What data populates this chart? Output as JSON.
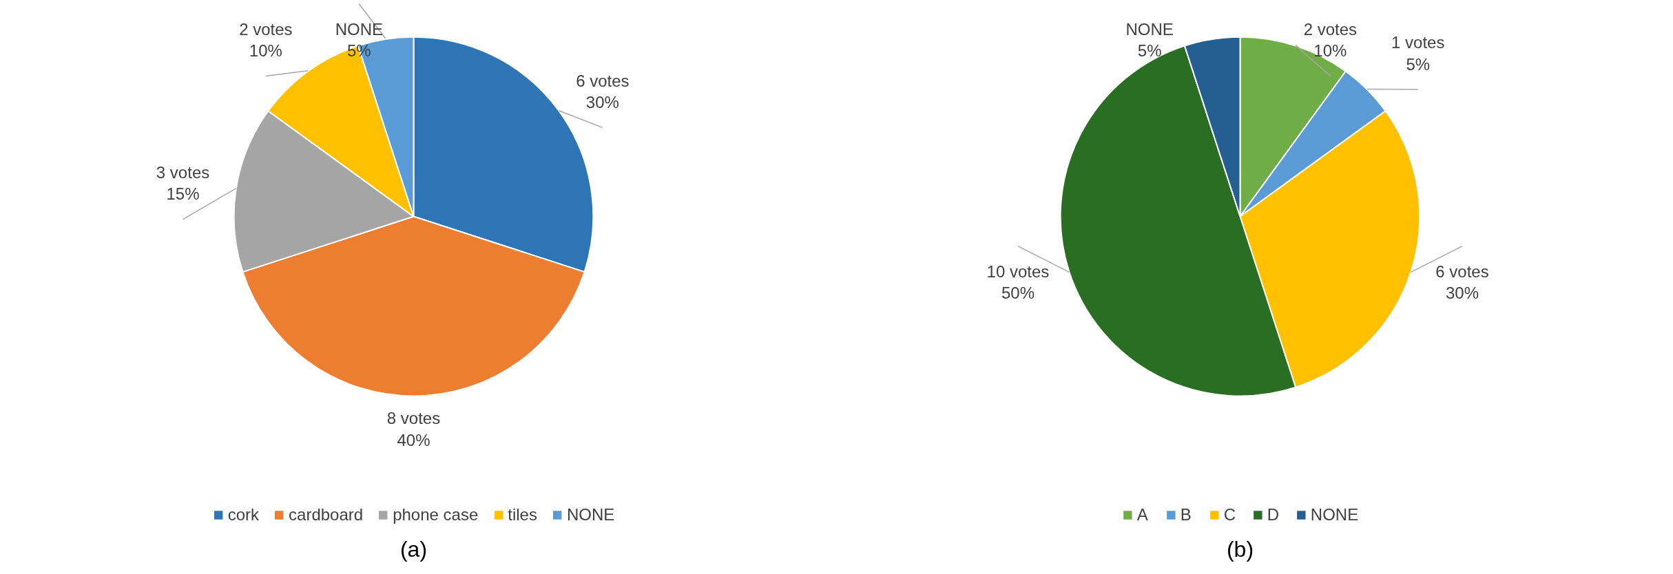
{
  "chart_data": [
    {
      "type": "pie",
      "categories": [
        "cork",
        "cardboard",
        "phone case",
        "tiles",
        "NONE"
      ],
      "values": [
        6,
        8,
        3,
        2,
        1
      ],
      "colors": [
        "#2e75b6",
        "#ed7d31",
        "#a5a5a5",
        "#ffc000",
        "#5b9bd5"
      ],
      "value_labels": [
        "6 votes\n30%",
        "8 votes\n40%",
        "3 votes\n15%",
        "2 votes\n10%",
        "NONE\n5%"
      ],
      "legend": "bottom",
      "annotations": [
        "(a)"
      ]
    },
    {
      "type": "pie",
      "categories": [
        "A",
        "B",
        "C",
        "D",
        "NONE"
      ],
      "values": [
        2,
        1,
        6,
        10,
        1
      ],
      "colors": [
        "#70ad47",
        "#5b9bd5",
        "#ffc000",
        "#2a6e24",
        "#255e91"
      ],
      "value_labels": [
        "2 votes\n10%",
        "1 votes\n5%",
        "6 votes\n30%",
        "10 votes\n50%",
        "NONE\n5%"
      ],
      "legend": "bottom",
      "annotations": [
        "(b)"
      ]
    }
  ]
}
